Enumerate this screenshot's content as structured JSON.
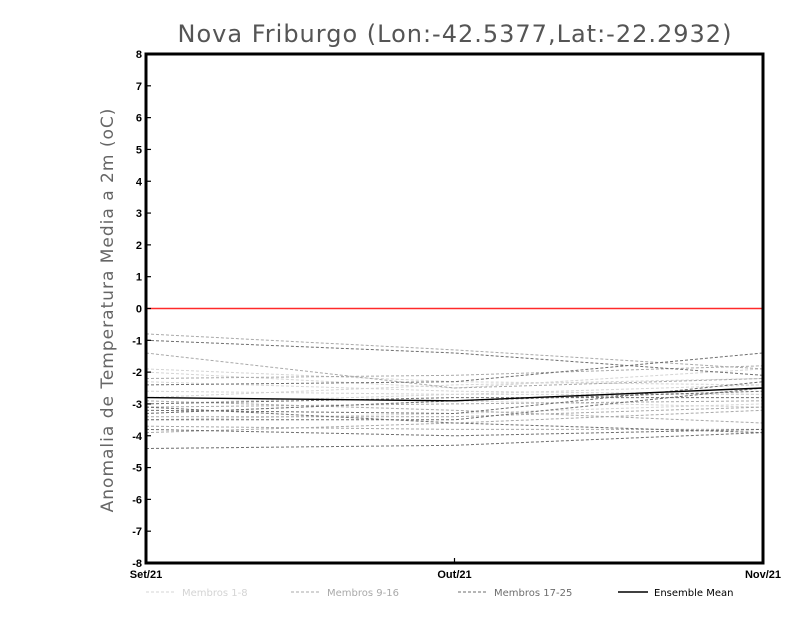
{
  "chart_data": {
    "type": "line",
    "title": "Nova Friburgo (Lon:-42.5377,Lat:-22.2932)",
    "ylabel": "Anomalia de Temperatura Media a 2m (oC)",
    "xlabel": "",
    "categories": [
      "Set/21",
      "Out/21",
      "Nov/21"
    ],
    "ylim": [
      -8,
      8
    ],
    "yticks": [
      8,
      7,
      6,
      5,
      4,
      3,
      2,
      1,
      0,
      -1,
      -2,
      -3,
      -4,
      -5,
      -6,
      -7,
      -8
    ],
    "grid": false,
    "legend_position": "bottom",
    "reference_line": {
      "value": 0,
      "color": "#ff2a2a"
    },
    "groups": [
      {
        "name": "Membros 1-8",
        "color": "#d4d4d4"
      },
      {
        "name": "Membros 9-16",
        "color": "#a9a9a9"
      },
      {
        "name": "Membros 17-25",
        "color": "#6e6e6e"
      },
      {
        "name": "Ensemble Mean",
        "color": "#000000"
      }
    ],
    "series": [
      {
        "group": 0,
        "values": [
          -2.3,
          -2.6,
          -2.7
        ]
      },
      {
        "group": 0,
        "values": [
          -1.9,
          -2.3,
          -2.4
        ]
      },
      {
        "group": 0,
        "values": [
          -2.0,
          -2.5,
          -1.9
        ]
      },
      {
        "group": 0,
        "values": [
          -3.3,
          -2.9,
          -3.1
        ]
      },
      {
        "group": 0,
        "values": [
          -2.8,
          -2.4,
          -2.2
        ]
      },
      {
        "group": 0,
        "values": [
          -3.5,
          -3.3,
          -3.0
        ]
      },
      {
        "group": 0,
        "values": [
          -2.6,
          -2.7,
          -2.4
        ]
      },
      {
        "group": 0,
        "values": [
          -3.0,
          -2.7,
          -2.7
        ]
      },
      {
        "group": 1,
        "values": [
          -0.8,
          -1.3,
          -1.9
        ]
      },
      {
        "group": 1,
        "values": [
          -1.4,
          -2.5,
          -2.2
        ]
      },
      {
        "group": 1,
        "values": [
          -3.1,
          -3.0,
          -2.9
        ]
      },
      {
        "group": 1,
        "values": [
          -3.9,
          -3.6,
          -3.2
        ]
      },
      {
        "group": 1,
        "values": [
          -2.2,
          -2.1,
          -1.8
        ]
      },
      {
        "group": 1,
        "values": [
          -3.4,
          -3.4,
          -3.1
        ]
      },
      {
        "group": 1,
        "values": [
          -2.9,
          -3.2,
          -3.6
        ]
      },
      {
        "group": 1,
        "values": [
          -3.7,
          -3.8,
          -3.8
        ]
      },
      {
        "group": 2,
        "values": [
          -1.0,
          -1.4,
          -2.1
        ]
      },
      {
        "group": 2,
        "values": [
          -2.4,
          -2.3,
          -1.4
        ]
      },
      {
        "group": 2,
        "values": [
          -3.1,
          -3.6,
          -3.9
        ]
      },
      {
        "group": 2,
        "values": [
          -3.5,
          -3.5,
          -2.5
        ]
      },
      {
        "group": 2,
        "values": [
          -3.3,
          -2.9,
          -2.6
        ]
      },
      {
        "group": 2,
        "values": [
          -4.4,
          -4.3,
          -3.9
        ]
      },
      {
        "group": 2,
        "values": [
          -3.8,
          -4.0,
          -3.8
        ]
      },
      {
        "group": 2,
        "values": [
          -3.2,
          -3.3,
          -2.3
        ]
      },
      {
        "group": 2,
        "values": [
          -3.0,
          -2.8,
          -2.8
        ]
      },
      {
        "group": 3,
        "values": [
          -2.8,
          -2.9,
          -2.5
        ]
      }
    ]
  }
}
